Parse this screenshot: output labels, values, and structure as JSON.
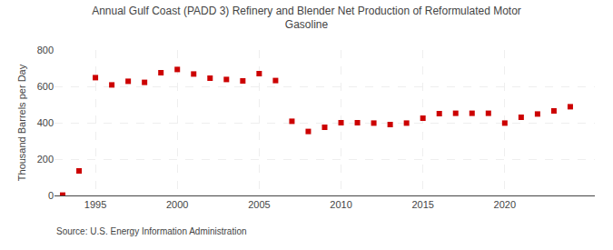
{
  "chart_data": {
    "type": "scatter",
    "title": "Annual Gulf Coast (PADD 3) Refinery and Blender Net Production of Reformulated Motor\nGasoline",
    "ylabel": "Thousand Barrels per Day",
    "annotations": [
      "Source: U.S. Energy Information Administration"
    ],
    "x": [
      1993,
      1994,
      1995,
      1996,
      1997,
      1998,
      1999,
      2000,
      2001,
      2002,
      2003,
      2004,
      2005,
      2006,
      2007,
      2008,
      2009,
      2010,
      2011,
      2012,
      2013,
      2014,
      2015,
      2016,
      2017,
      2018,
      2019,
      2020,
      2021,
      2022,
      2023,
      2024
    ],
    "values": [
      2,
      135,
      648,
      608,
      628,
      622,
      675,
      693,
      668,
      645,
      638,
      630,
      670,
      632,
      408,
      352,
      375,
      400,
      400,
      398,
      390,
      398,
      425,
      450,
      452,
      452,
      452,
      398,
      430,
      448,
      465,
      488
    ],
    "color": "#cc0000",
    "marker": "square",
    "xlim": [
      1992.5,
      2025.5
    ],
    "xticks": [
      1995,
      2000,
      2005,
      2010,
      2015,
      2020
    ],
    "ylim": [
      0,
      800
    ],
    "yticks": [
      0,
      200,
      400,
      600,
      800
    ],
    "grid": true
  }
}
